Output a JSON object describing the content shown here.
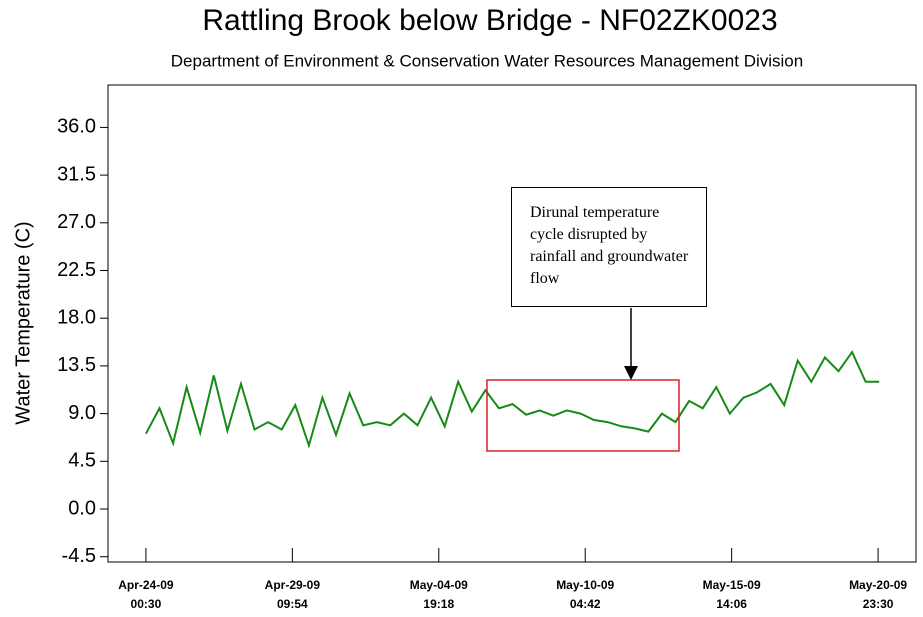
{
  "chart_data": {
    "type": "line",
    "title": "Rattling Brook below Bridge - NF02ZK0023",
    "subtitle": "Department of Environment & Conservation Water Resources Management Division",
    "y_label": "Water Temperature (C)",
    "annotation": "Dirunal temperature cycle disrupted by rainfall and groundwater flow",
    "x": [
      "2009-04-24T00:30",
      "2009-04-24T12:30",
      "2009-04-25T00:30",
      "2009-04-25T12:30",
      "2009-04-26T00:30",
      "2009-04-26T12:30",
      "2009-04-27T00:30",
      "2009-04-27T12:30",
      "2009-04-28T00:30",
      "2009-04-28T12:30",
      "2009-04-29T00:30",
      "2009-04-29T12:30",
      "2009-04-30T00:30",
      "2009-04-30T12:30",
      "2009-05-01T00:30",
      "2009-05-01T12:30",
      "2009-05-02T00:30",
      "2009-05-02T12:30",
      "2009-05-03T00:30",
      "2009-05-03T12:30",
      "2009-05-04T00:30",
      "2009-05-04T12:30",
      "2009-05-05T00:30",
      "2009-05-05T12:30",
      "2009-05-06T00:30",
      "2009-05-06T12:30",
      "2009-05-07T00:30",
      "2009-05-07T12:30",
      "2009-05-08T00:30",
      "2009-05-08T12:30",
      "2009-05-09T00:30",
      "2009-05-09T12:30",
      "2009-05-10T00:30",
      "2009-05-10T12:30",
      "2009-05-11T00:30",
      "2009-05-11T12:30",
      "2009-05-12T00:30",
      "2009-05-12T12:30",
      "2009-05-13T00:30",
      "2009-05-13T12:30",
      "2009-05-14T00:30",
      "2009-05-14T12:30",
      "2009-05-15T00:30",
      "2009-05-15T12:30",
      "2009-05-16T00:30",
      "2009-05-16T12:30",
      "2009-05-17T00:30",
      "2009-05-17T12:30",
      "2009-05-18T00:30",
      "2009-05-18T12:30",
      "2009-05-19T00:30",
      "2009-05-19T12:30",
      "2009-05-20T00:30",
      "2009-05-20T12:30",
      "2009-05-21T00:30"
    ],
    "series": [
      {
        "color": "#178a17",
        "values": [
          7.1,
          9.5,
          6.2,
          11.5,
          7.2,
          12.6,
          7.4,
          11.8,
          7.5,
          8.2,
          7.5,
          9.8,
          6.0,
          10.5,
          7.0,
          10.9,
          7.9,
          8.2,
          7.9,
          9.0,
          7.9,
          10.5,
          7.8,
          12.0,
          9.2,
          11.2,
          9.5,
          9.9,
          8.9,
          9.3,
          8.8,
          9.3,
          9.0,
          8.4,
          8.2,
          7.8,
          7.6,
          7.3,
          9.0,
          8.2,
          10.2,
          9.5,
          11.5,
          9.0,
          10.5,
          11.0,
          11.8,
          9.8,
          14.0,
          12.0,
          14.3,
          13.0,
          14.8,
          12.0,
          12.0
        ]
      }
    ],
    "xlim": [
      "2009-04-22T15:00",
      "2009-05-22T09:00"
    ],
    "xticks": [
      {
        "value": "2009-04-24T00:30",
        "label": "Apr-24-09 00:30"
      },
      {
        "value": "2009-04-29T09:54",
        "label": "Apr-29-09 09:54"
      },
      {
        "value": "2009-05-04T19:18",
        "label": "May-04-09 19:18"
      },
      {
        "value": "2009-05-10T04:42",
        "label": "May-10-09 04:42"
      },
      {
        "value": "2009-05-15T14:06",
        "label": "May-15-09 14:06"
      },
      {
        "value": "2009-05-20T23:30",
        "label": "May-20-09 23:30"
      }
    ],
    "ylim": [
      -5,
      40
    ],
    "yticks": [
      -4.5,
      {
        "value": 0,
        "label": "0.0"
      },
      4.5,
      {
        "value": 9,
        "label": "9.0"
      },
      13.5,
      {
        "value": 18,
        "label": "18.0"
      },
      22.5,
      {
        "value": 27,
        "label": "27.0"
      },
      31.5,
      {
        "value": 36,
        "label": "36.0"
      }
    ]
  }
}
